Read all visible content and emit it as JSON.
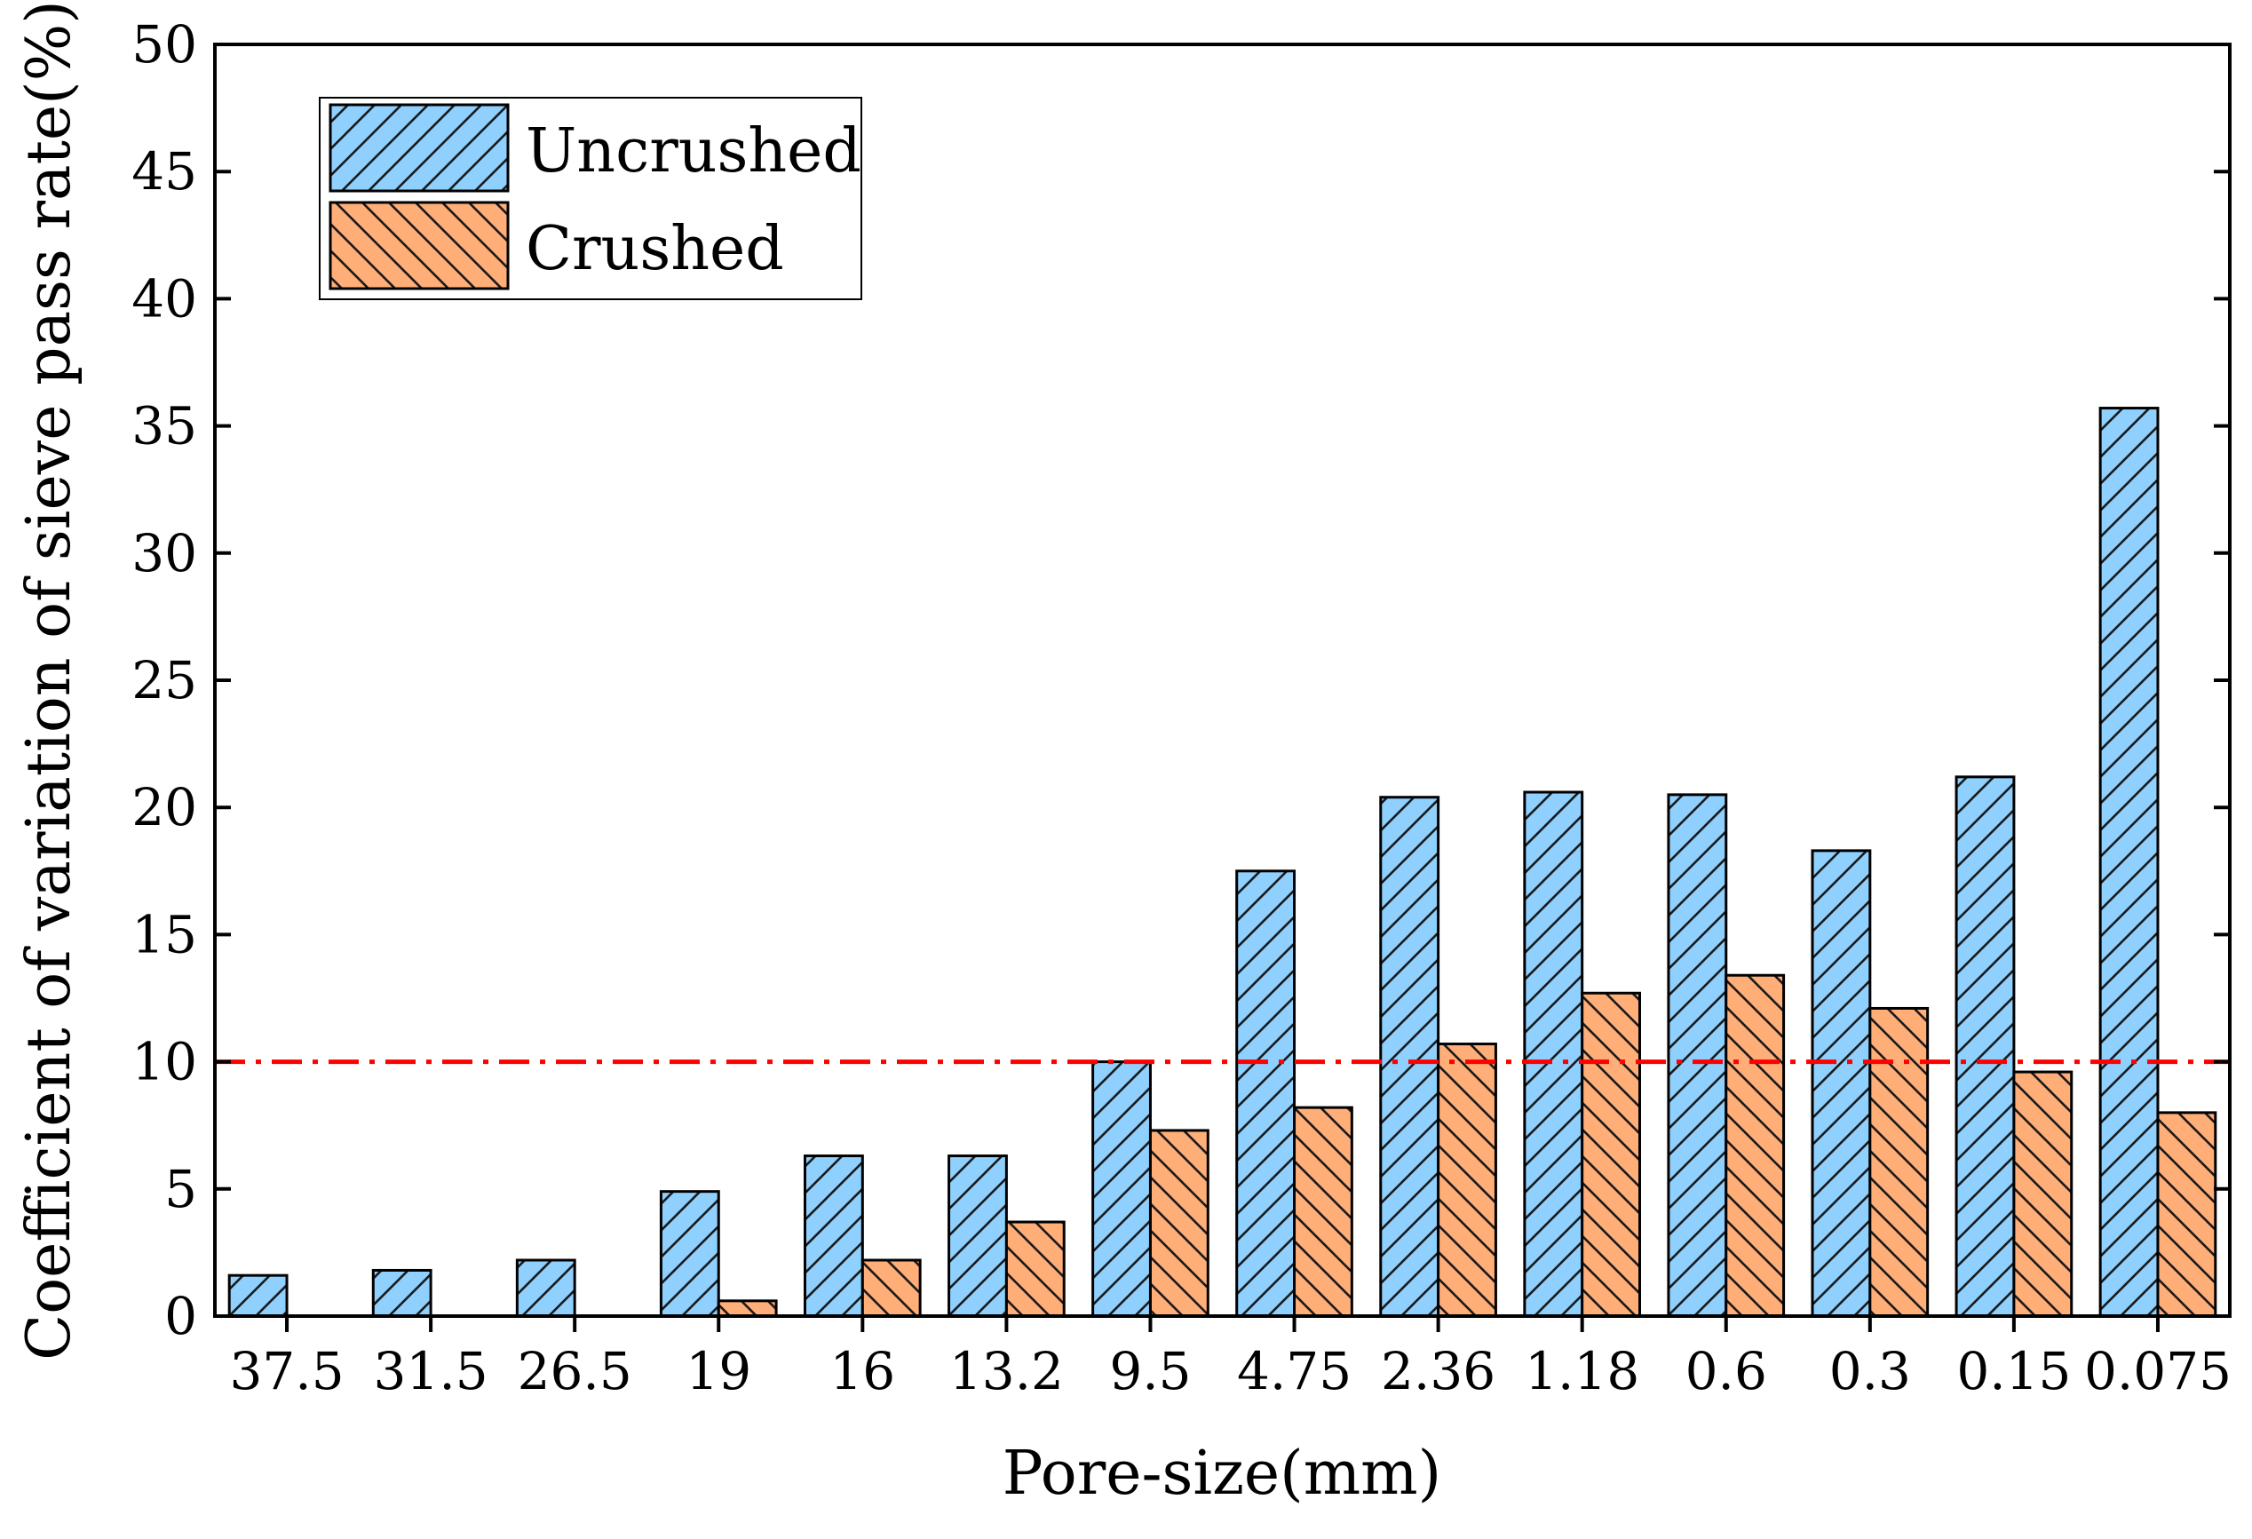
{
  "chart_data": {
    "type": "bar",
    "title": "",
    "xlabel": "Pore-size(mm)",
    "ylabel": "Coefficient of variation of sieve pass rate(%)",
    "categories": [
      "37.5",
      "31.5",
      "26.5",
      "19",
      "16",
      "13.2",
      "9.5",
      "4.75",
      "2.36",
      "1.18",
      "0.6",
      "0.3",
      "0.15",
      "0.075"
    ],
    "series": [
      {
        "name": "Uncrushed",
        "color": "#8fd0ff",
        "hatch": "forward",
        "values": [
          1.6,
          1.8,
          2.2,
          4.9,
          6.3,
          6.3,
          10.0,
          17.5,
          20.4,
          20.6,
          20.5,
          18.3,
          21.2,
          35.7
        ]
      },
      {
        "name": "Crushed",
        "color": "#ffae78",
        "hatch": "backward",
        "values": [
          0,
          0,
          0,
          0.6,
          2.2,
          3.7,
          7.3,
          8.2,
          10.7,
          12.7,
          13.4,
          12.1,
          9.6,
          8.0
        ]
      }
    ],
    "ylim": [
      0,
      50
    ],
    "yticks": [
      "0",
      "5",
      "10",
      "15",
      "20",
      "25",
      "30",
      "35",
      "40",
      "45",
      "50"
    ],
    "reference_line": {
      "y": 10,
      "color": "#ff0000",
      "style": "dash-dot"
    },
    "legend": {
      "position": "top-left"
    },
    "grid": false
  }
}
